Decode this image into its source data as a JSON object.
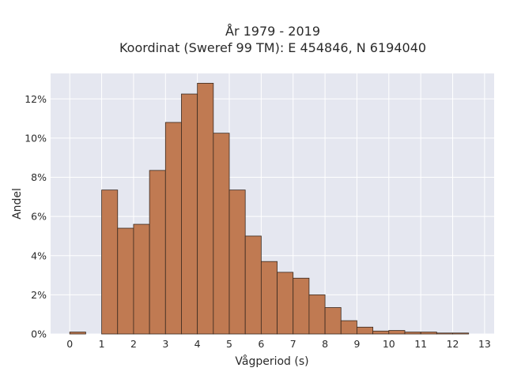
{
  "chart_data": {
    "type": "bar",
    "title": "År 1979 - 2019",
    "subtitle": "Koordinat (Sweref 99 TM): E 454846, N 6194040",
    "xlabel": "Vågperiod (s)",
    "ylabel": "Andel",
    "bin_width": 0.5,
    "bin_starts": [
      0,
      0.5,
      1,
      1.5,
      2,
      2.5,
      3,
      3.5,
      4,
      4.5,
      5,
      5.5,
      6,
      6.5,
      7,
      7.5,
      8,
      8.5,
      9,
      9.5,
      10,
      10.5,
      11,
      11.5,
      12,
      12.5
    ],
    "values": [
      0.1,
      0.0,
      7.35,
      5.4,
      5.6,
      8.35,
      10.8,
      12.25,
      12.8,
      10.25,
      7.35,
      5.0,
      3.7,
      3.15,
      2.85,
      2.0,
      1.35,
      0.68,
      0.35,
      0.15,
      0.18,
      0.1,
      0.1,
      0.05,
      0.05,
      0.0
    ],
    "xlim": [
      -0.6,
      13.3
    ],
    "ylim": [
      0,
      13.3
    ],
    "xticks": [
      "0",
      "1",
      "2",
      "3",
      "4",
      "5",
      "6",
      "7",
      "8",
      "9",
      "10",
      "11",
      "12",
      "13"
    ],
    "yticks": [
      "0%",
      "2%",
      "4%",
      "6%",
      "8%",
      "10%",
      "12%"
    ],
    "grid": true,
    "colors": {
      "bar_fill": "#c07a52",
      "bar_edge": "#3a2a20",
      "plot_bg": "#e5e7f0",
      "grid": "#ffffff"
    }
  }
}
